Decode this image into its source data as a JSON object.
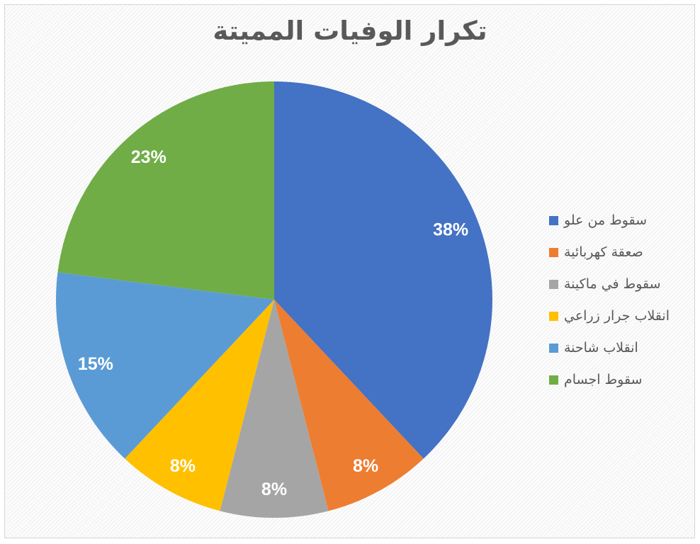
{
  "title": "تكرار الوفيات المميتة",
  "chart_data": {
    "type": "pie",
    "title": "تكرار الوفيات المميتة",
    "start_angle_deg": 0,
    "direction": "clockwise",
    "legend_position": "right",
    "data_labels": "percent-inside",
    "slices": [
      {
        "label": "سقوط من علو",
        "value_pct": 38,
        "data_label": "38%",
        "color": "#4472C4"
      },
      {
        "label": "صعقة كهربائية",
        "value_pct": 8,
        "data_label": "8%",
        "color": "#ED7D31"
      },
      {
        "label": "سقوط في ماكينة",
        "value_pct": 8,
        "data_label": "8%",
        "color": "#A5A5A5"
      },
      {
        "label": "انقلاب جرار زراعي",
        "value_pct": 8,
        "data_label": "8%",
        "color": "#FFC000"
      },
      {
        "label": "انقلاب شاحنة",
        "value_pct": 15,
        "data_label": "15%",
        "color": "#5B9BD5"
      },
      {
        "label": "سقوط اجسام",
        "value_pct": 23,
        "data_label": "23%",
        "color": "#70AD47"
      }
    ]
  },
  "styles": {
    "title_color": "#595959",
    "legend_text_color": "#595959",
    "data_label_color": "#ffffff",
    "frame_border_color": "#d4d4d4",
    "background": "#fdfdfd"
  }
}
